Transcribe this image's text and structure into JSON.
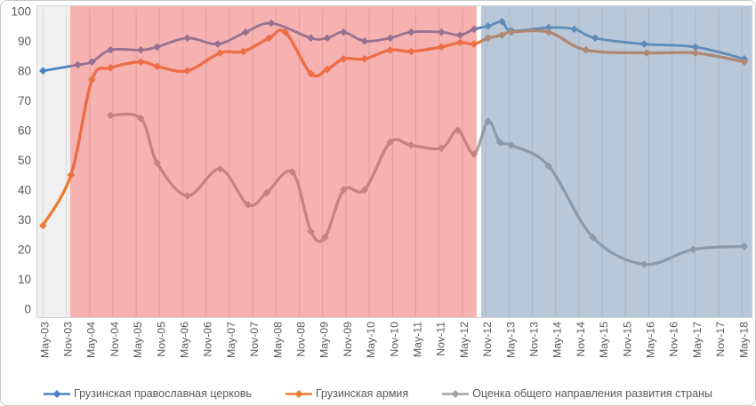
{
  "figure_title": "",
  "text_color": "#595959",
  "gridline_color": "#d9d9d9",
  "plot_border_color": "#d2d2d2",
  "chart_data": {
    "type": "line",
    "title": "",
    "xlabel": "",
    "ylabel": "",
    "grid": "vertical-only",
    "legend_position": "bottom",
    "x_encoding": "x is half-year tick index: 0 = May-03, 1 = Nov-03, ..., 30 = May-18; fractional x = survey wave between ticks",
    "x_axis": {
      "label_rotation": -90,
      "tick_labels": [
        "May-03",
        "Nov-03",
        "May-04",
        "Nov-04",
        "May-05",
        "Nov-05",
        "May-06",
        "Nov-06",
        "May-07",
        "Nov-07",
        "May-08",
        "Nov-08",
        "May-09",
        "Nov-09",
        "May-10",
        "Nov-10",
        "May-11",
        "Nov-11",
        "May-12",
        "Nov-12",
        "May-13",
        "Nov-13",
        "May-14",
        "Nov-14",
        "May-15",
        "Nov-15",
        "May-16",
        "Nov-16",
        "May-17",
        "Nov-17",
        "May-18"
      ]
    },
    "y_axis": {
      "min": 0,
      "max": 100,
      "step": 10,
      "tick_labels": [
        "0",
        "10",
        "20",
        "30",
        "40",
        "50",
        "60",
        "70",
        "80",
        "90",
        "100"
      ]
    },
    "series": [
      {
        "name": "Грузинская православная церковь",
        "color": "#4a84c4",
        "line_width": 2.8,
        "marker": "diamond",
        "points": [
          [
            0,
            80
          ],
          [
            1.5,
            82
          ],
          [
            2.1,
            83
          ],
          [
            2.9,
            87
          ],
          [
            4.2,
            87
          ],
          [
            4.9,
            88
          ],
          [
            6.2,
            91
          ],
          [
            7.5,
            89
          ],
          [
            8.7,
            93
          ],
          [
            9.8,
            96
          ],
          [
            11.5,
            91
          ],
          [
            12.2,
            91
          ],
          [
            12.9,
            93
          ],
          [
            13.8,
            90
          ],
          [
            14.9,
            91
          ],
          [
            15.8,
            93
          ],
          [
            17.1,
            93
          ],
          [
            17.9,
            92
          ],
          [
            18.5,
            94
          ],
          [
            19.1,
            95
          ],
          [
            19.7,
            96.5
          ],
          [
            20.1,
            93.5
          ],
          [
            21.7,
            94.5
          ],
          [
            22.8,
            94
          ],
          [
            23.7,
            91
          ],
          [
            25.8,
            89
          ],
          [
            28,
            88
          ],
          [
            30.1,
            84
          ]
        ]
      },
      {
        "name": "Грузинская армия",
        "color": "#ed7d31",
        "line_width": 3.3,
        "marker": "diamond",
        "points": [
          [
            0,
            28
          ],
          [
            1.2,
            45
          ],
          [
            2.1,
            77
          ],
          [
            2.9,
            81
          ],
          [
            4.2,
            83
          ],
          [
            4.9,
            81.5
          ],
          [
            6.2,
            80
          ],
          [
            7.6,
            86
          ],
          [
            8.6,
            86.5
          ],
          [
            9.7,
            91
          ],
          [
            10.4,
            93
          ],
          [
            11.5,
            79
          ],
          [
            12.2,
            80.5
          ],
          [
            12.9,
            84
          ],
          [
            13.8,
            84
          ],
          [
            14.9,
            87
          ],
          [
            15.8,
            86.5
          ],
          [
            17.1,
            88
          ],
          [
            17.9,
            89.5
          ],
          [
            18.5,
            89
          ],
          [
            19.1,
            91
          ],
          [
            19.7,
            92
          ],
          [
            20.1,
            93
          ],
          [
            21.7,
            93
          ],
          [
            23.3,
            87
          ],
          [
            25.9,
            86
          ],
          [
            28,
            86
          ],
          [
            30.1,
            83
          ]
        ]
      },
      {
        "name": "Оценка общего направления развития страны",
        "color": "#a5a5a5",
        "line_width": 3.3,
        "marker": "diamond",
        "points": [
          [
            2.9,
            65
          ],
          [
            4.2,
            64
          ],
          [
            4.9,
            49
          ],
          [
            6.2,
            38
          ],
          [
            7.6,
            47
          ],
          [
            8.8,
            35
          ],
          [
            9.6,
            39
          ],
          [
            10.7,
            46
          ],
          [
            11.5,
            26
          ],
          [
            12.1,
            24
          ],
          [
            12.9,
            40
          ],
          [
            13.8,
            40
          ],
          [
            14.9,
            56
          ],
          [
            15.8,
            55
          ],
          [
            17.1,
            54
          ],
          [
            17.8,
            60
          ],
          [
            18.5,
            52
          ],
          [
            19.1,
            63
          ],
          [
            19.6,
            56
          ],
          [
            20.1,
            55
          ],
          [
            21.7,
            48
          ],
          [
            23.6,
            24
          ],
          [
            25.8,
            15
          ],
          [
            27.9,
            20
          ],
          [
            30.1,
            21
          ]
        ]
      }
    ],
    "background_regions": [
      {
        "name": "pre-period-strip",
        "overlay": false,
        "color": "#f0f0f0",
        "alpha": 1,
        "x_start": -0.27,
        "x_end": 1.17
      },
      {
        "name": "red-era-overlay",
        "overlay": true,
        "color": "#ec5c5c",
        "alpha": 0.48,
        "x_start": 1.17,
        "x_end": 18.61
      },
      {
        "name": "blue-era-overlay",
        "overlay": true,
        "color": "#7391b2",
        "alpha": 0.5,
        "x_start": 18.8,
        "x_end": 30.45
      }
    ]
  }
}
